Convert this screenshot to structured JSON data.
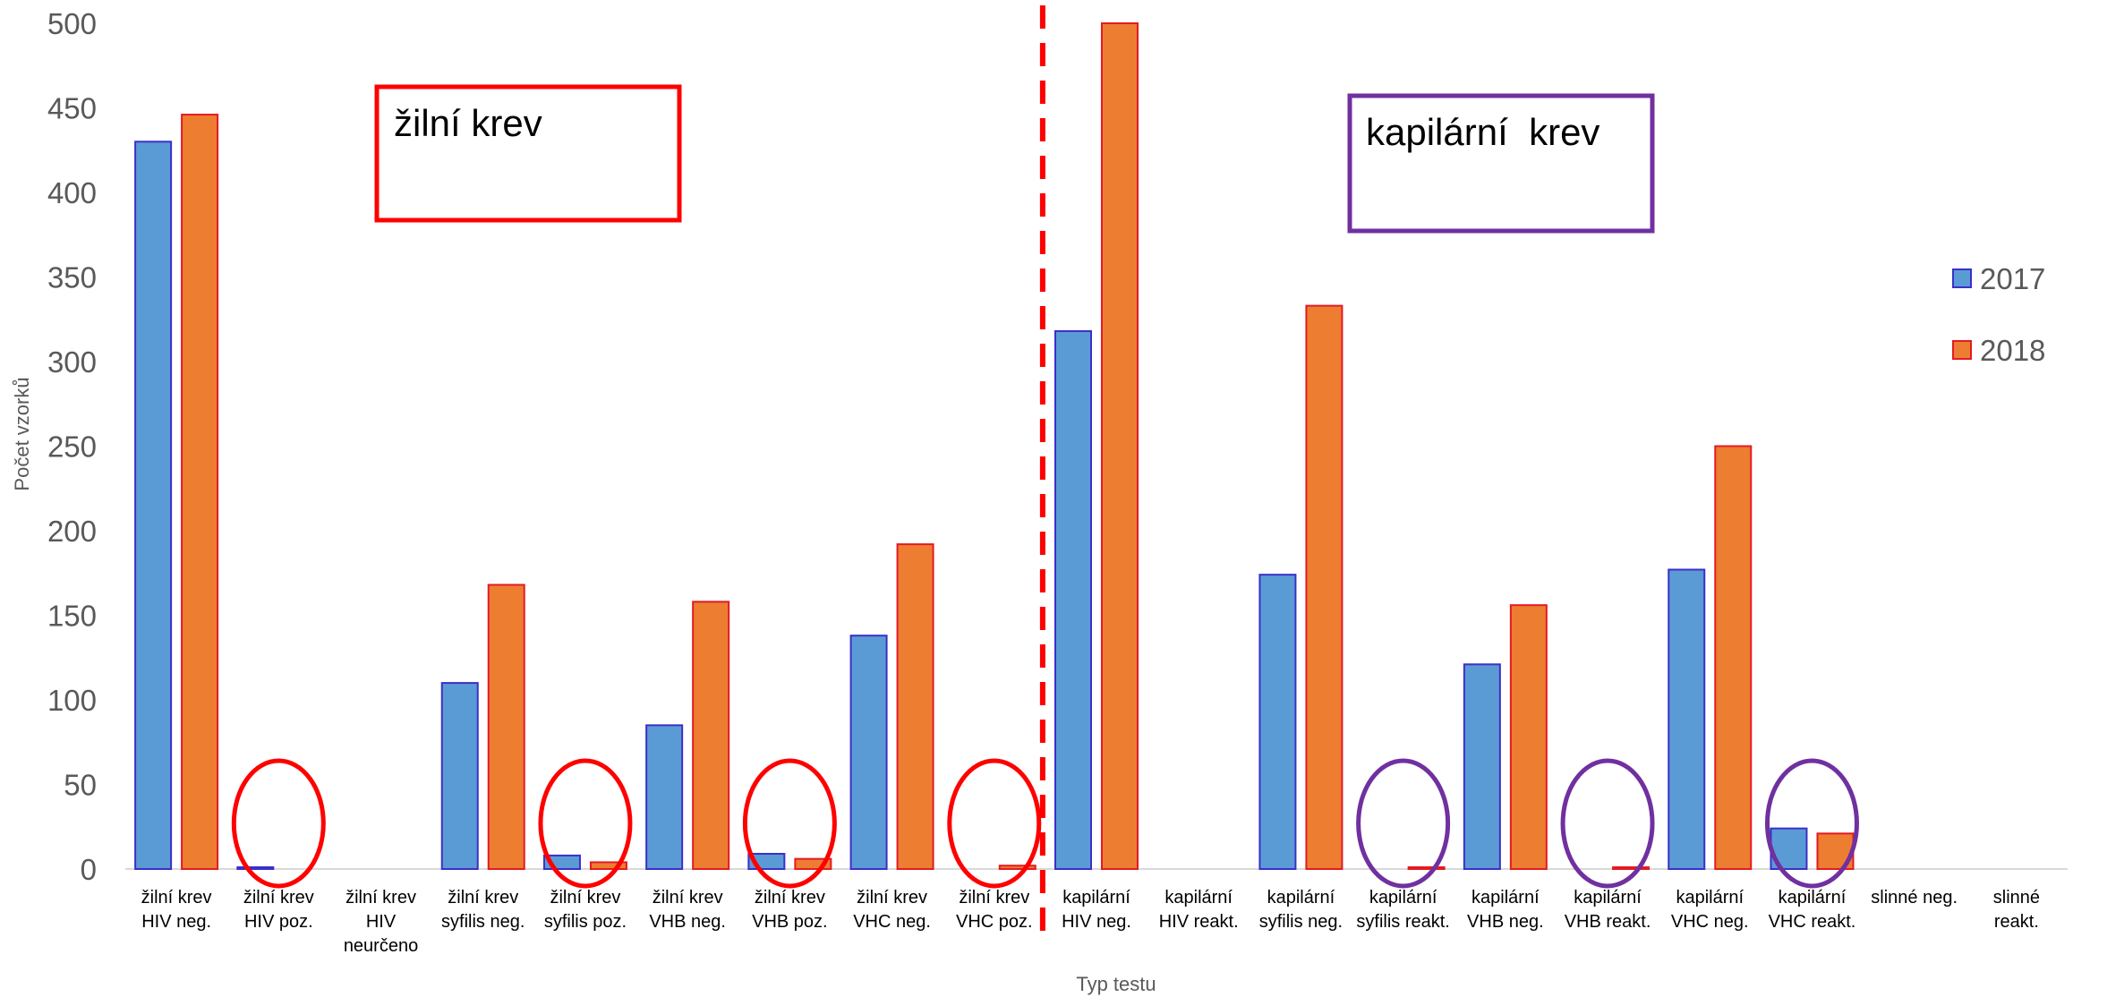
{
  "chart_data": {
    "type": "bar",
    "ylabel": "Počet vzorků",
    "xlabel": "Typ testu",
    "ylim": [
      0,
      500
    ],
    "yticks": [
      0,
      50,
      100,
      150,
      200,
      250,
      300,
      350,
      400,
      450,
      500
    ],
    "grid": false,
    "legend_position": "right",
    "categories": [
      [
        "žilní krev",
        "HIV neg."
      ],
      [
        "žilní krev",
        "HIV poz."
      ],
      [
        "žilní krev",
        "HIV",
        "neurčeno"
      ],
      [
        "žilní krev",
        "syfilis neg."
      ],
      [
        "žilní krev",
        "syfilis poz."
      ],
      [
        "žilní krev",
        "VHB neg."
      ],
      [
        "žilní krev",
        "VHB poz."
      ],
      [
        "žilní krev",
        "VHC neg."
      ],
      [
        "žilní krev",
        "VHC poz."
      ],
      [
        "kapilární",
        "HIV neg."
      ],
      [
        "kapilární",
        "HIV reakt."
      ],
      [
        "kapilární",
        "syfilis neg."
      ],
      [
        "kapilární",
        "syfilis reakt."
      ],
      [
        "kapilární",
        "VHB neg."
      ],
      [
        "kapilární",
        "VHB reakt."
      ],
      [
        "kapilární",
        "VHC neg."
      ],
      [
        "kapilární",
        "VHC reakt."
      ],
      [
        "slinné neg."
      ],
      [
        "slinné",
        "reakt."
      ]
    ],
    "series": [
      {
        "name": "2017",
        "color": "#5b9bd5",
        "border": "#3b2fc9",
        "values": [
          430,
          1,
          0,
          110,
          8,
          85,
          9,
          138,
          0,
          318,
          0,
          174,
          0,
          121,
          0,
          177,
          24,
          0,
          0
        ]
      },
      {
        "name": "2018",
        "color": "#ed7d31",
        "border": "#e31b23",
        "values": [
          446,
          0,
          0,
          168,
          4,
          158,
          6,
          192,
          2,
          500,
          0,
          333,
          1,
          156,
          1,
          250,
          21,
          0,
          0
        ]
      }
    ],
    "annotations": {
      "boxes": [
        {
          "text": "žilní krev",
          "color": "#ff0000"
        },
        {
          "text": "kapilární  krev",
          "color": "#7030a0"
        }
      ],
      "divider": {
        "between_categories": [
          8,
          9
        ],
        "color": "#ff0000",
        "style": "dashed"
      },
      "circles": [
        {
          "category": 1,
          "color": "#ff0000"
        },
        {
          "category": 4,
          "color": "#ff0000"
        },
        {
          "category": 6,
          "color": "#ff0000"
        },
        {
          "category": 8,
          "color": "#ff0000"
        },
        {
          "category": 12,
          "color": "#7030a0"
        },
        {
          "category": 14,
          "color": "#7030a0"
        },
        {
          "category": 16,
          "color": "#7030a0"
        }
      ]
    }
  }
}
